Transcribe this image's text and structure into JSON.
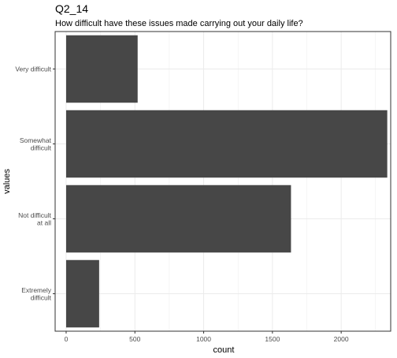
{
  "chart_data": {
    "type": "bar",
    "orientation": "horizontal",
    "title": "Q2_14",
    "subtitle": "How difficult have these issues made carrying out your daily life?",
    "xlabel": "count",
    "ylabel": "values",
    "categories": [
      [
        "Very difficult"
      ],
      [
        "Somewhat",
        "difficult"
      ],
      [
        "Not difficult",
        "at all"
      ],
      [
        "Extremely",
        "difficult"
      ]
    ],
    "values": [
      520,
      2335,
      1635,
      240
    ],
    "xlim": [
      -80,
      2360
    ],
    "xticks": [
      0,
      500,
      1000,
      1500,
      2000
    ],
    "xtick_labels": [
      "0",
      "500",
      "1000",
      "1500",
      "2000"
    ],
    "grid": true,
    "bar_color": "#474747",
    "panel_border_color": "#333333",
    "grid_color": "#ebebeb"
  }
}
